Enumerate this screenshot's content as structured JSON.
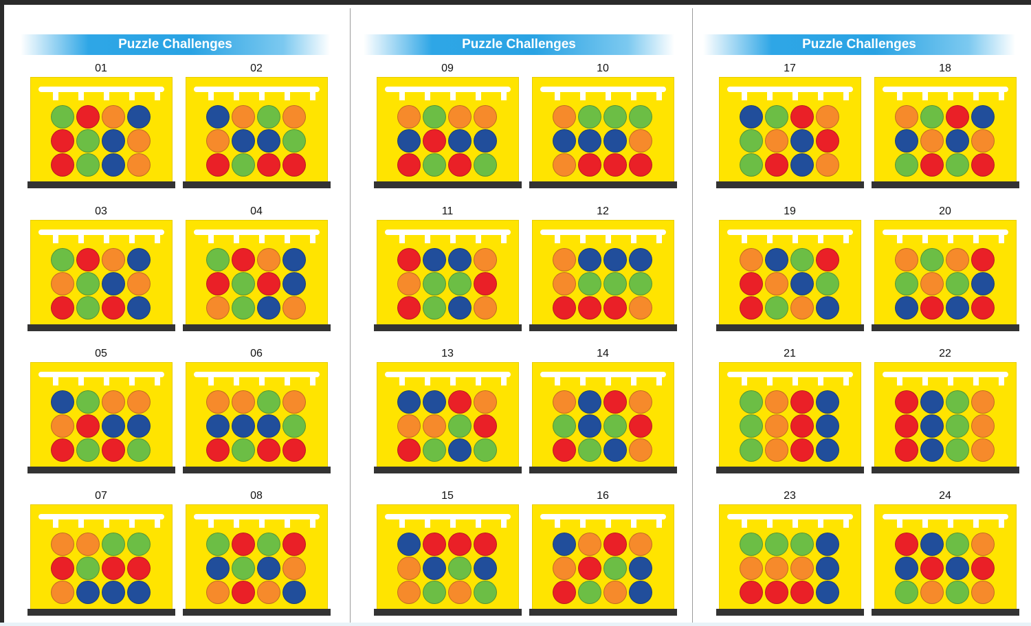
{
  "header_title": "Puzzle Challenges",
  "colors": {
    "green": "#6cbe45",
    "red": "#ea2027",
    "orange": "#f68a2b",
    "blue": "#214e9b",
    "board": "#ffe400",
    "header": "#2ea6e6"
  },
  "pages": [
    {
      "title": "Puzzle Challenges",
      "puzzles": [
        {
          "label": "01",
          "grid": [
            [
              "green",
              "red",
              "orange",
              "blue"
            ],
            [
              "red",
              "green",
              "blue",
              "orange"
            ],
            [
              "red",
              "green",
              "blue",
              "orange"
            ]
          ]
        },
        {
          "label": "02",
          "grid": [
            [
              "blue",
              "orange",
              "green",
              "orange"
            ],
            [
              "orange",
              "blue",
              "blue",
              "green"
            ],
            [
              "red",
              "green",
              "red",
              "red"
            ]
          ]
        },
        {
          "label": "03",
          "grid": [
            [
              "green",
              "red",
              "orange",
              "blue"
            ],
            [
              "orange",
              "green",
              "blue",
              "orange"
            ],
            [
              "red",
              "green",
              "red",
              "blue"
            ]
          ]
        },
        {
          "label": "04",
          "grid": [
            [
              "green",
              "red",
              "orange",
              "blue"
            ],
            [
              "red",
              "green",
              "red",
              "blue"
            ],
            [
              "orange",
              "green",
              "blue",
              "orange"
            ]
          ]
        },
        {
          "label": "05",
          "grid": [
            [
              "blue",
              "green",
              "orange",
              "orange"
            ],
            [
              "orange",
              "red",
              "blue",
              "blue"
            ],
            [
              "red",
              "green",
              "red",
              "green"
            ]
          ]
        },
        {
          "label": "06",
          "grid": [
            [
              "orange",
              "orange",
              "green",
              "orange"
            ],
            [
              "blue",
              "blue",
              "blue",
              "green"
            ],
            [
              "red",
              "green",
              "red",
              "red"
            ]
          ]
        },
        {
          "label": "07",
          "grid": [
            [
              "orange",
              "orange",
              "green",
              "green"
            ],
            [
              "red",
              "green",
              "red",
              "red"
            ],
            [
              "orange",
              "blue",
              "blue",
              "blue"
            ]
          ]
        },
        {
          "label": "08",
          "grid": [
            [
              "green",
              "red",
              "green",
              "red"
            ],
            [
              "blue",
              "green",
              "blue",
              "orange"
            ],
            [
              "orange",
              "red",
              "orange",
              "blue"
            ]
          ]
        }
      ]
    },
    {
      "title": "Puzzle Challenges",
      "puzzles": [
        {
          "label": "09",
          "grid": [
            [
              "orange",
              "green",
              "orange",
              "orange"
            ],
            [
              "blue",
              "red",
              "blue",
              "blue"
            ],
            [
              "red",
              "green",
              "red",
              "green"
            ]
          ]
        },
        {
          "label": "10",
          "grid": [
            [
              "orange",
              "green",
              "green",
              "green"
            ],
            [
              "blue",
              "blue",
              "blue",
              "orange"
            ],
            [
              "orange",
              "red",
              "red",
              "red"
            ]
          ]
        },
        {
          "label": "11",
          "grid": [
            [
              "red",
              "blue",
              "blue",
              "orange"
            ],
            [
              "orange",
              "green",
              "green",
              "red"
            ],
            [
              "red",
              "green",
              "blue",
              "orange"
            ]
          ]
        },
        {
          "label": "12",
          "grid": [
            [
              "orange",
              "blue",
              "blue",
              "blue"
            ],
            [
              "orange",
              "green",
              "green",
              "green"
            ],
            [
              "red",
              "red",
              "red",
              "orange"
            ]
          ]
        },
        {
          "label": "13",
          "grid": [
            [
              "blue",
              "blue",
              "red",
              "orange"
            ],
            [
              "orange",
              "orange",
              "green",
              "red"
            ],
            [
              "red",
              "green",
              "blue",
              "green"
            ]
          ]
        },
        {
          "label": "14",
          "grid": [
            [
              "orange",
              "blue",
              "red",
              "orange"
            ],
            [
              "green",
              "blue",
              "green",
              "red"
            ],
            [
              "red",
              "green",
              "blue",
              "orange"
            ]
          ]
        },
        {
          "label": "15",
          "grid": [
            [
              "blue",
              "red",
              "red",
              "red"
            ],
            [
              "orange",
              "blue",
              "green",
              "blue"
            ],
            [
              "orange",
              "green",
              "orange",
              "green"
            ]
          ]
        },
        {
          "label": "16",
          "grid": [
            [
              "blue",
              "orange",
              "red",
              "orange"
            ],
            [
              "orange",
              "red",
              "green",
              "blue"
            ],
            [
              "red",
              "green",
              "orange",
              "blue"
            ]
          ]
        }
      ]
    },
    {
      "title": "Puzzle Challenges",
      "puzzles": [
        {
          "label": "17",
          "grid": [
            [
              "blue",
              "green",
              "red",
              "orange"
            ],
            [
              "green",
              "orange",
              "blue",
              "red"
            ],
            [
              "green",
              "red",
              "blue",
              "orange"
            ]
          ]
        },
        {
          "label": "18",
          "grid": [
            [
              "orange",
              "green",
              "red",
              "blue"
            ],
            [
              "blue",
              "orange",
              "blue",
              "orange"
            ],
            [
              "green",
              "red",
              "green",
              "red"
            ]
          ]
        },
        {
          "label": "19",
          "grid": [
            [
              "orange",
              "blue",
              "green",
              "red"
            ],
            [
              "red",
              "orange",
              "blue",
              "green"
            ],
            [
              "red",
              "green",
              "orange",
              "blue"
            ]
          ]
        },
        {
          "label": "20",
          "grid": [
            [
              "orange",
              "green",
              "orange",
              "red"
            ],
            [
              "green",
              "orange",
              "green",
              "blue"
            ],
            [
              "blue",
              "red",
              "blue",
              "red"
            ]
          ]
        },
        {
          "label": "21",
          "grid": [
            [
              "green",
              "orange",
              "red",
              "blue"
            ],
            [
              "green",
              "orange",
              "red",
              "blue"
            ],
            [
              "green",
              "orange",
              "red",
              "blue"
            ]
          ]
        },
        {
          "label": "22",
          "grid": [
            [
              "red",
              "blue",
              "green",
              "orange"
            ],
            [
              "red",
              "blue",
              "green",
              "orange"
            ],
            [
              "red",
              "blue",
              "green",
              "orange"
            ]
          ]
        },
        {
          "label": "23",
          "grid": [
            [
              "green",
              "green",
              "green",
              "blue"
            ],
            [
              "orange",
              "orange",
              "orange",
              "blue"
            ],
            [
              "red",
              "red",
              "red",
              "blue"
            ]
          ]
        },
        {
          "label": "24",
          "grid": [
            [
              "red",
              "blue",
              "green",
              "orange"
            ],
            [
              "blue",
              "red",
              "blue",
              "red"
            ],
            [
              "green",
              "orange",
              "green",
              "orange"
            ]
          ]
        }
      ]
    }
  ]
}
